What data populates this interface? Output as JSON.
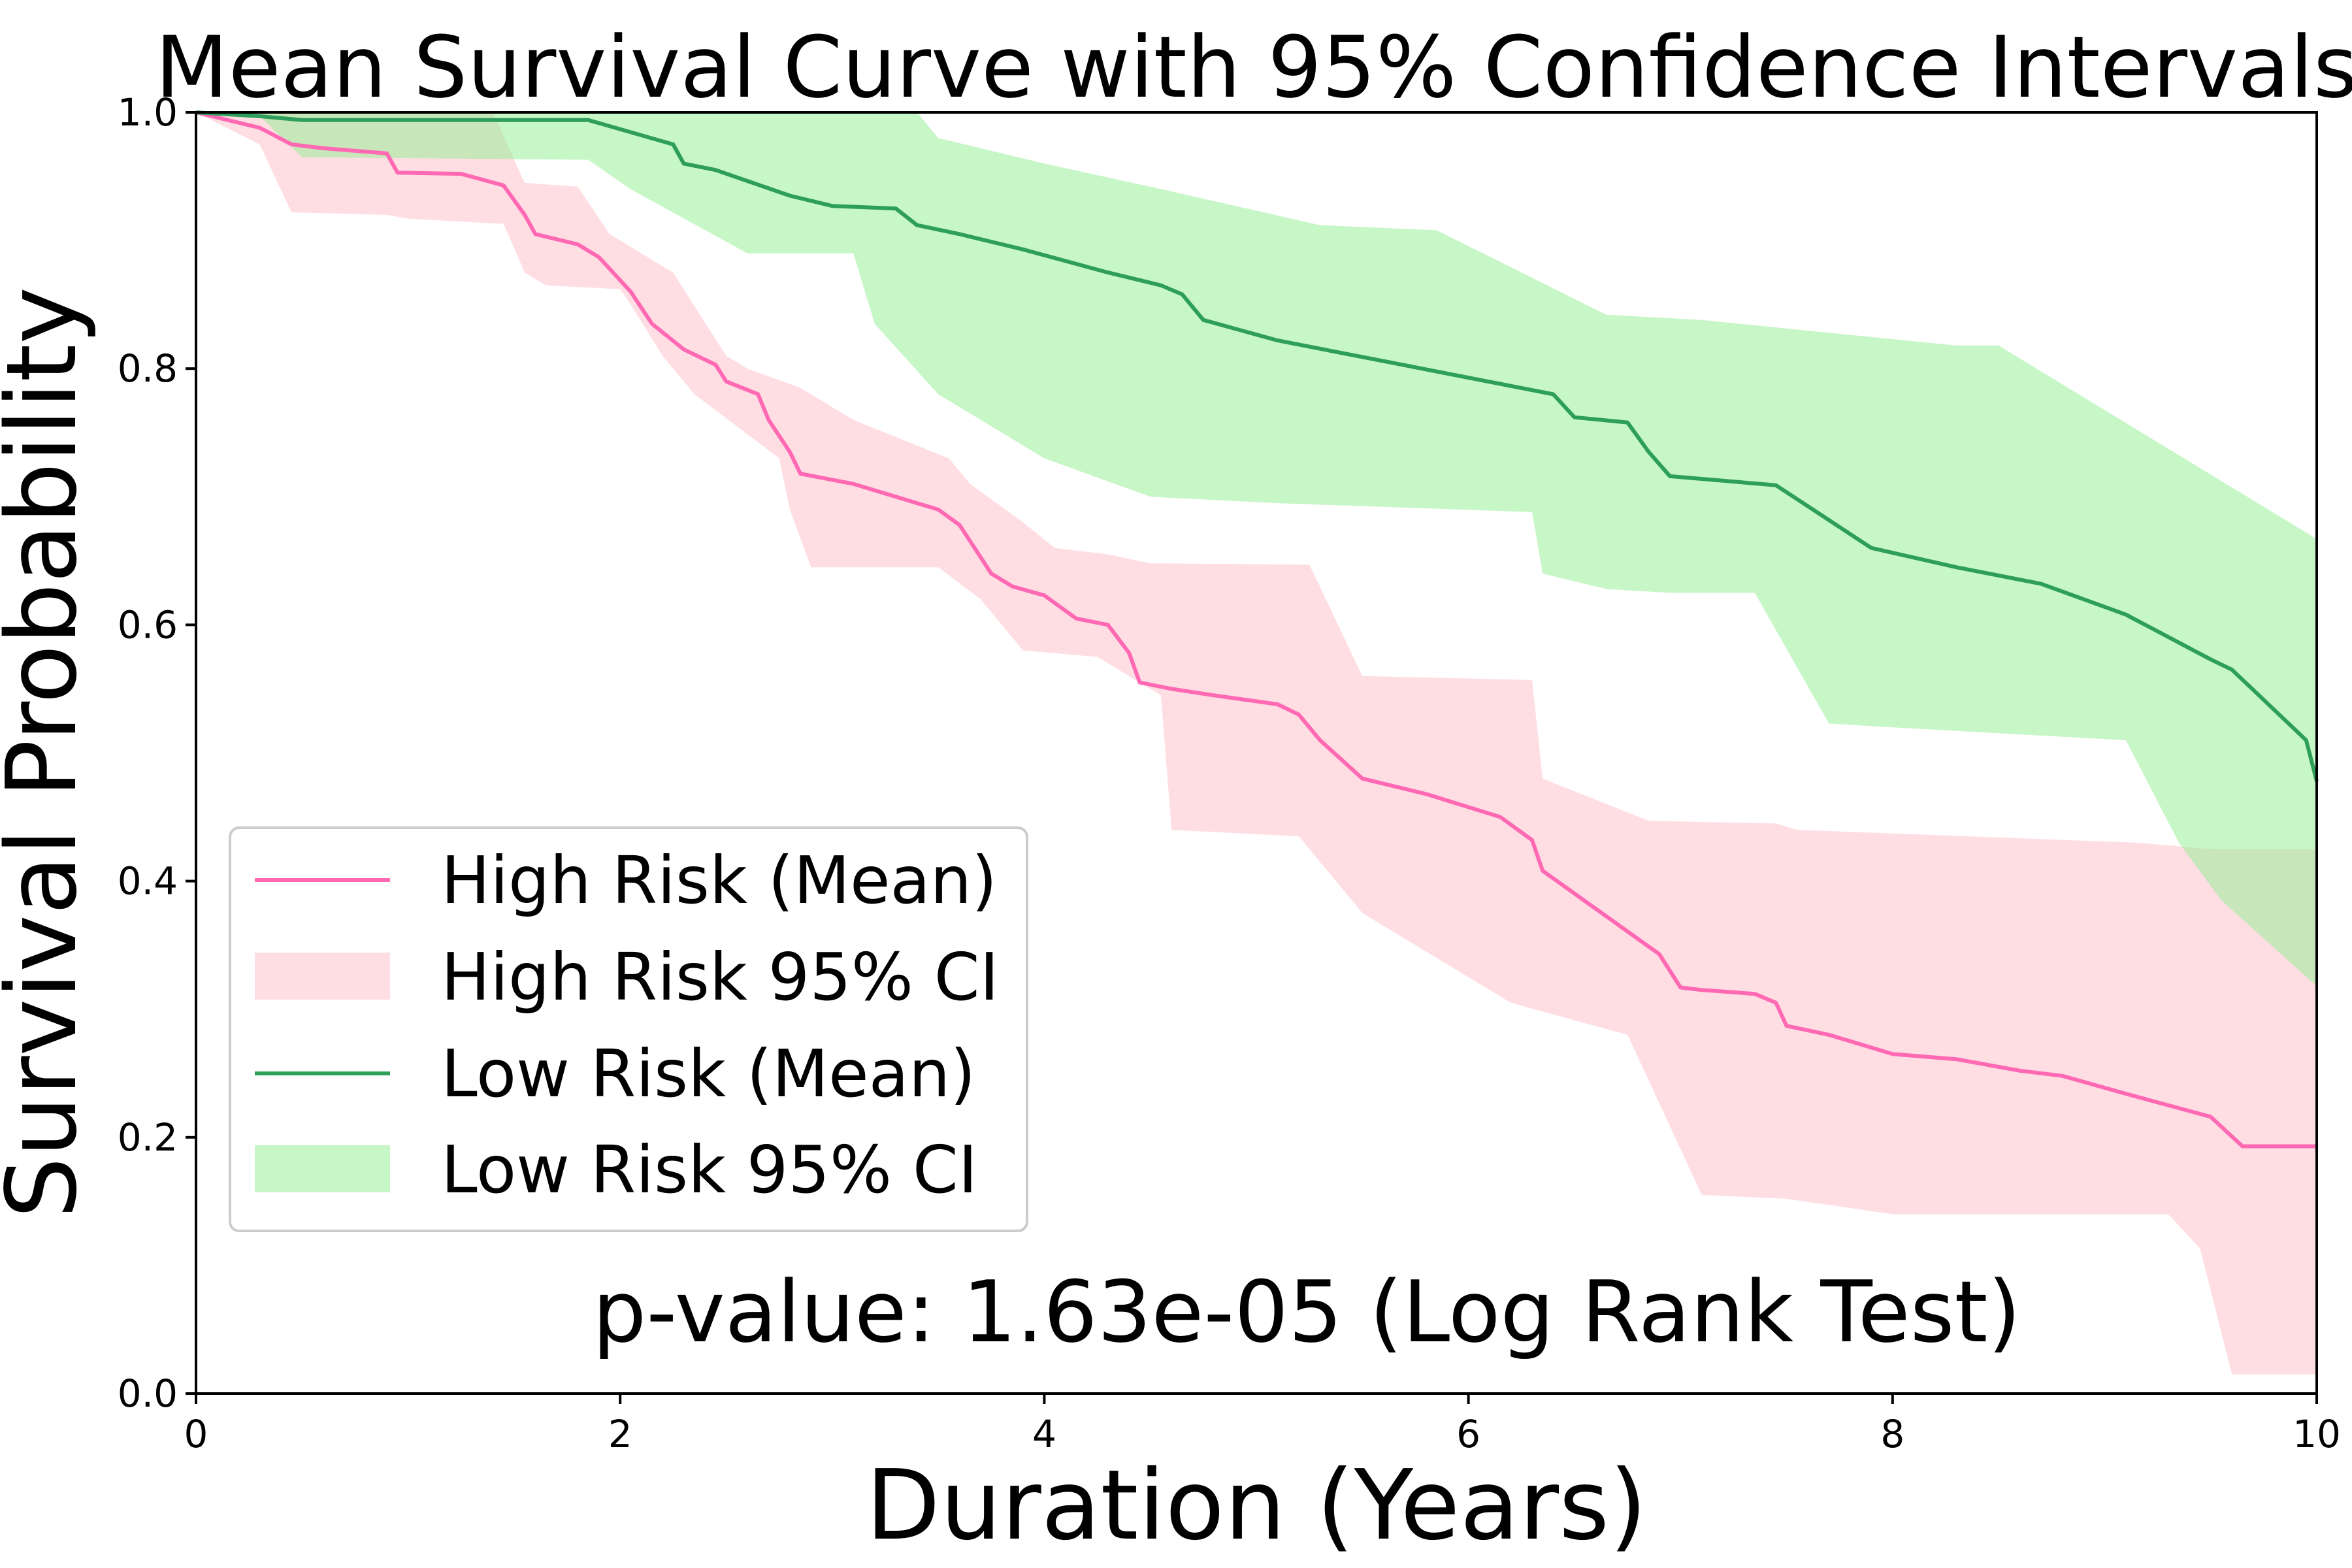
{
  "chart_data": {
    "type": "line",
    "title": "Mean Survival Curve with 95% Confidence Intervals",
    "xlabel": "Duration (Years)",
    "ylabel": "Survival Probability",
    "xlim": [
      0,
      10
    ],
    "ylim": [
      0,
      1
    ],
    "xticks": [
      0,
      2,
      4,
      6,
      8,
      10
    ],
    "xtick_labels": [
      "0",
      "2",
      "4",
      "6",
      "8",
      "10"
    ],
    "yticks": [
      0,
      0.2,
      0.4,
      0.6,
      0.8,
      1.0
    ],
    "ytick_labels": [
      "0.0",
      "0.2",
      "0.4",
      "0.6",
      "0.8",
      "1.0"
    ],
    "grid": false,
    "legend_position": "lower-left",
    "annotation": "p-value: 1.63e-05 (Log Rank Test)",
    "series": [
      {
        "name": "High Risk (Mean)",
        "ci_name": "High Risk 95% CI",
        "color": "#ff69b4",
        "ci_color": "#ffb6c1",
        "ci_opacity": 0.45,
        "mean": [
          [
            0,
            1.0
          ],
          [
            0.3,
            0.988
          ],
          [
            0.45,
            0.975
          ],
          [
            0.6,
            0.972
          ],
          [
            0.9,
            0.968
          ],
          [
            0.95,
            0.953
          ],
          [
            1.25,
            0.952
          ],
          [
            1.45,
            0.943
          ],
          [
            1.55,
            0.92
          ],
          [
            1.6,
            0.905
          ],
          [
            1.8,
            0.897
          ],
          [
            1.9,
            0.887
          ],
          [
            2.05,
            0.86
          ],
          [
            2.15,
            0.835
          ],
          [
            2.3,
            0.815
          ],
          [
            2.45,
            0.803
          ],
          [
            2.5,
            0.79
          ],
          [
            2.65,
            0.78
          ],
          [
            2.7,
            0.76
          ],
          [
            2.8,
            0.735
          ],
          [
            2.85,
            0.718
          ],
          [
            3.1,
            0.71
          ],
          [
            3.5,
            0.69
          ],
          [
            3.6,
            0.678
          ],
          [
            3.75,
            0.64
          ],
          [
            3.85,
            0.63
          ],
          [
            4.0,
            0.623
          ],
          [
            4.15,
            0.605
          ],
          [
            4.3,
            0.6
          ],
          [
            4.4,
            0.578
          ],
          [
            4.45,
            0.555
          ],
          [
            4.6,
            0.55
          ],
          [
            4.8,
            0.545
          ],
          [
            5.1,
            0.538
          ],
          [
            5.2,
            0.53
          ],
          [
            5.3,
            0.51
          ],
          [
            5.5,
            0.48
          ],
          [
            5.8,
            0.468
          ],
          [
            6.15,
            0.45
          ],
          [
            6.3,
            0.432
          ],
          [
            6.35,
            0.408
          ],
          [
            6.9,
            0.343
          ],
          [
            7.0,
            0.317
          ],
          [
            7.1,
            0.315
          ],
          [
            7.35,
            0.312
          ],
          [
            7.45,
            0.305
          ],
          [
            7.5,
            0.287
          ],
          [
            7.7,
            0.28
          ],
          [
            8.0,
            0.265
          ],
          [
            8.3,
            0.261
          ],
          [
            8.6,
            0.252
          ],
          [
            8.8,
            0.248
          ],
          [
            9.1,
            0.234
          ],
          [
            9.5,
            0.216
          ],
          [
            9.65,
            0.193
          ],
          [
            10.0,
            0.193
          ]
        ],
        "ci_upper": [
          [
            0,
            1.0
          ],
          [
            0.45,
            1.0
          ],
          [
            1.4,
            1.0
          ],
          [
            1.55,
            0.945
          ],
          [
            1.8,
            0.942
          ],
          [
            1.95,
            0.905
          ],
          [
            2.25,
            0.875
          ],
          [
            2.5,
            0.81
          ],
          [
            2.6,
            0.8
          ],
          [
            2.85,
            0.785
          ],
          [
            3.1,
            0.76
          ],
          [
            3.55,
            0.73
          ],
          [
            3.65,
            0.71
          ],
          [
            3.9,
            0.68
          ],
          [
            4.05,
            0.66
          ],
          [
            4.3,
            0.655
          ],
          [
            4.5,
            0.648
          ],
          [
            5.25,
            0.647
          ],
          [
            5.5,
            0.56
          ],
          [
            6.3,
            0.557
          ],
          [
            6.35,
            0.48
          ],
          [
            6.85,
            0.447
          ],
          [
            7.45,
            0.445
          ],
          [
            7.55,
            0.44
          ],
          [
            9.15,
            0.43
          ],
          [
            9.5,
            0.425
          ],
          [
            10.0,
            0.425
          ]
        ],
        "ci_lower": [
          [
            0,
            1.0
          ],
          [
            0.3,
            0.975
          ],
          [
            0.45,
            0.922
          ],
          [
            0.9,
            0.92
          ],
          [
            1.0,
            0.917
          ],
          [
            1.45,
            0.913
          ],
          [
            1.55,
            0.875
          ],
          [
            1.65,
            0.865
          ],
          [
            2.0,
            0.862
          ],
          [
            2.05,
            0.85
          ],
          [
            2.2,
            0.81
          ],
          [
            2.35,
            0.78
          ],
          [
            2.55,
            0.755
          ],
          [
            2.75,
            0.73
          ],
          [
            2.8,
            0.69
          ],
          [
            2.9,
            0.645
          ],
          [
            3.5,
            0.645
          ],
          [
            3.7,
            0.62
          ],
          [
            3.9,
            0.58
          ],
          [
            4.25,
            0.575
          ],
          [
            4.55,
            0.545
          ],
          [
            4.6,
            0.44
          ],
          [
            5.2,
            0.435
          ],
          [
            5.5,
            0.375
          ],
          [
            6.2,
            0.305
          ],
          [
            6.75,
            0.28
          ],
          [
            7.1,
            0.155
          ],
          [
            7.5,
            0.152
          ],
          [
            8.0,
            0.14
          ],
          [
            9.3,
            0.14
          ],
          [
            9.45,
            0.113
          ],
          [
            9.6,
            0.015
          ],
          [
            10.0,
            0.015
          ]
        ]
      },
      {
        "name": "Low Risk (Mean)",
        "ci_name": "Low Risk 95% CI",
        "color": "#2e9e5b",
        "ci_color": "#90ee90",
        "ci_opacity": 0.5,
        "mean": [
          [
            0,
            1.0
          ],
          [
            0.3,
            0.997
          ],
          [
            0.5,
            0.994
          ],
          [
            1.85,
            0.994
          ],
          [
            2.25,
            0.975
          ],
          [
            2.3,
            0.96
          ],
          [
            2.45,
            0.955
          ],
          [
            2.8,
            0.935
          ],
          [
            3.0,
            0.927
          ],
          [
            3.3,
            0.925
          ],
          [
            3.4,
            0.912
          ],
          [
            3.6,
            0.905
          ],
          [
            3.9,
            0.893
          ],
          [
            4.3,
            0.875
          ],
          [
            4.55,
            0.865
          ],
          [
            4.65,
            0.858
          ],
          [
            4.75,
            0.838
          ],
          [
            5.1,
            0.822
          ],
          [
            6.4,
            0.78
          ],
          [
            6.5,
            0.762
          ],
          [
            6.75,
            0.758
          ],
          [
            6.85,
            0.735
          ],
          [
            6.95,
            0.716
          ],
          [
            7.45,
            0.709
          ],
          [
            7.9,
            0.66
          ],
          [
            8.3,
            0.645
          ],
          [
            8.7,
            0.632
          ],
          [
            9.1,
            0.608
          ],
          [
            9.5,
            0.573
          ],
          [
            9.6,
            0.565
          ],
          [
            9.95,
            0.51
          ],
          [
            10.0,
            0.478
          ]
        ],
        "ci_upper": [
          [
            0,
            1.0
          ],
          [
            1.9,
            1.0
          ],
          [
            2.0,
            1.0
          ],
          [
            3.4,
            1.0
          ],
          [
            3.5,
            0.98
          ],
          [
            4.0,
            0.96
          ],
          [
            4.5,
            0.942
          ],
          [
            5.3,
            0.912
          ],
          [
            5.85,
            0.908
          ],
          [
            6.65,
            0.842
          ],
          [
            7.1,
            0.838
          ],
          [
            8.3,
            0.818
          ],
          [
            8.5,
            0.818
          ],
          [
            10.0,
            0.667
          ]
        ],
        "ci_lower": [
          [
            0,
            1.0
          ],
          [
            0.3,
            0.997
          ],
          [
            0.5,
            0.965
          ],
          [
            1.85,
            0.963
          ],
          [
            2.05,
            0.94
          ],
          [
            2.6,
            0.89
          ],
          [
            3.1,
            0.89
          ],
          [
            3.2,
            0.835
          ],
          [
            3.5,
            0.78
          ],
          [
            4.0,
            0.73
          ],
          [
            4.5,
            0.7
          ],
          [
            5.1,
            0.695
          ],
          [
            6.3,
            0.688
          ],
          [
            6.35,
            0.64
          ],
          [
            6.65,
            0.628
          ],
          [
            6.95,
            0.625
          ],
          [
            7.35,
            0.625
          ],
          [
            7.7,
            0.523
          ],
          [
            8.0,
            0.52
          ],
          [
            9.1,
            0.51
          ],
          [
            9.35,
            0.43
          ],
          [
            9.55,
            0.385
          ],
          [
            10.0,
            0.318
          ]
        ]
      }
    ]
  }
}
